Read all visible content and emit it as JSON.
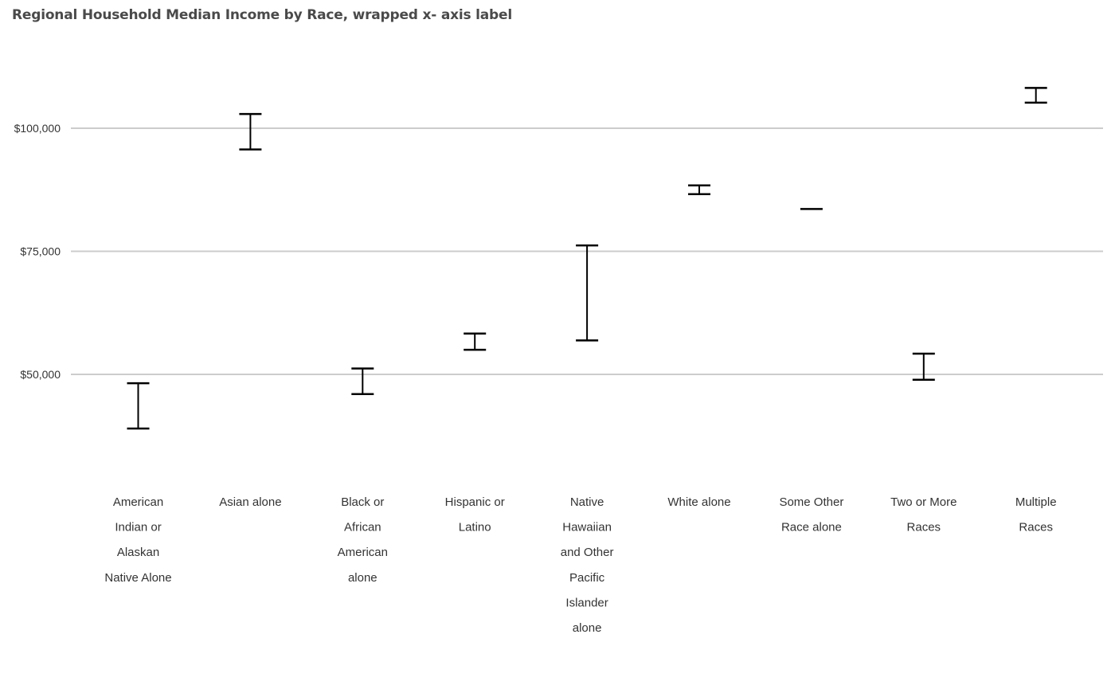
{
  "chart_data": {
    "type": "errorbar",
    "title": "Regional Household Median Income by Race, wrapped x- axis label",
    "xlabel": "",
    "ylabel": "",
    "ylim": [
      27000,
      120000
    ],
    "yticks": [
      {
        "value": 50000,
        "label": "$50,000"
      },
      {
        "value": 75000,
        "label": "$75,000"
      },
      {
        "value": 100000,
        "label": "$100,000"
      }
    ],
    "grid": true,
    "legend": "none",
    "colors": {
      "bar": "#000000",
      "grid": "#cccccc",
      "text": "#333333",
      "title": "#4a4a4a"
    },
    "categories": [
      {
        "lines": [
          "American",
          "Indian or",
          "Alaskan",
          "Native Alone"
        ],
        "low": 39000,
        "high": 48200
      },
      {
        "lines": [
          "Asian alone"
        ],
        "low": 95700,
        "high": 102900
      },
      {
        "lines": [
          "Black or",
          "African",
          "American",
          "alone"
        ],
        "low": 46000,
        "high": 51200
      },
      {
        "lines": [
          "Hispanic or",
          "Latino"
        ],
        "low": 55000,
        "high": 58300
      },
      {
        "lines": [
          "Native",
          "Hawaiian",
          "and Other",
          "Pacific",
          "Islander",
          "alone"
        ],
        "low": 56900,
        "high": 76200
      },
      {
        "lines": [
          "White alone"
        ],
        "low": 86600,
        "high": 88400
      },
      {
        "lines": [
          "Some Other",
          "Race alone"
        ],
        "low": 83600,
        "high": 83600
      },
      {
        "lines": [
          "Two or More",
          "Races"
        ],
        "low": 48900,
        "high": 54200
      },
      {
        "lines": [
          "Multiple",
          "Races"
        ],
        "low": 105200,
        "high": 108200
      }
    ]
  }
}
